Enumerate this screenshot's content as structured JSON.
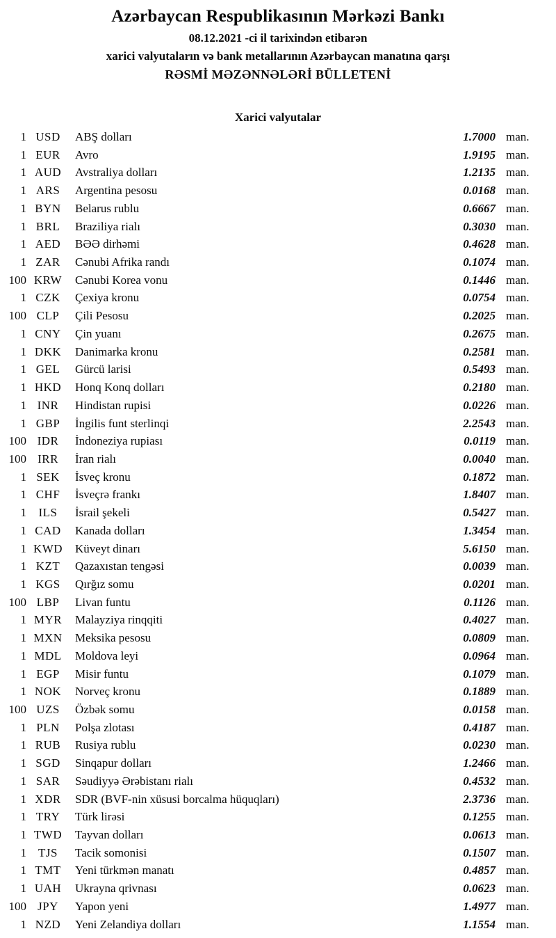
{
  "header": {
    "bank_name": "Azərbaycan Respublikasının Mərkəzi Bankı",
    "date_line": "08.12.2021 -ci il tarixindən etibarən",
    "scope_line": "xarici valyutaların və bank metallarının Azərbaycan manatına qarşı",
    "bulletin_title": "RƏSMİ MƏZƏNNƏLƏRİ BÜLLETENİ"
  },
  "section": {
    "title": "Xarici valyutalar"
  },
  "table": {
    "unit_suffix": "man.",
    "rows": [
      {
        "nominal": "1",
        "code": "USD",
        "name": "ABŞ dolları",
        "rate": "1.7000"
      },
      {
        "nominal": "1",
        "code": "EUR",
        "name": "Avro",
        "rate": "1.9195"
      },
      {
        "nominal": "1",
        "code": "AUD",
        "name": "Avstraliya dolları",
        "rate": "1.2135"
      },
      {
        "nominal": "1",
        "code": "ARS",
        "name": "Argentina pesosu",
        "rate": "0.0168"
      },
      {
        "nominal": "1",
        "code": "BYN",
        "name": "Belarus rublu",
        "rate": "0.6667"
      },
      {
        "nominal": "1",
        "code": "BRL",
        "name": "Braziliya rialı",
        "rate": "0.3030"
      },
      {
        "nominal": "1",
        "code": "AED",
        "name": "BƏƏ dirhəmi",
        "rate": "0.4628"
      },
      {
        "nominal": "1",
        "code": "ZAR",
        "name": "Cənubi Afrika randı",
        "rate": "0.1074"
      },
      {
        "nominal": "100",
        "code": "KRW",
        "name": "Cənubi Korea vonu",
        "rate": "0.1446"
      },
      {
        "nominal": "1",
        "code": "CZK",
        "name": "Çexiya kronu",
        "rate": "0.0754"
      },
      {
        "nominal": "100",
        "code": "CLP",
        "name": "Çili Pesosu",
        "rate": "0.2025"
      },
      {
        "nominal": "1",
        "code": "CNY",
        "name": "Çin yuanı",
        "rate": "0.2675"
      },
      {
        "nominal": "1",
        "code": "DKK",
        "name": "Danimarka kronu",
        "rate": "0.2581"
      },
      {
        "nominal": "1",
        "code": "GEL",
        "name": "Gürcü larisi",
        "rate": "0.5493"
      },
      {
        "nominal": "1",
        "code": "HKD",
        "name": "Honq Konq dolları",
        "rate": "0.2180"
      },
      {
        "nominal": "1",
        "code": "INR",
        "name": "Hindistan rupisi",
        "rate": "0.0226"
      },
      {
        "nominal": "1",
        "code": "GBP",
        "name": "İngilis funt sterlinqi",
        "rate": "2.2543"
      },
      {
        "nominal": "100",
        "code": "IDR",
        "name": "İndoneziya rupiası",
        "rate": "0.0119"
      },
      {
        "nominal": "100",
        "code": "IRR",
        "name": "İran rialı",
        "rate": "0.0040"
      },
      {
        "nominal": "1",
        "code": "SEK",
        "name": "İsveç kronu",
        "rate": "0.1872"
      },
      {
        "nominal": "1",
        "code": "CHF",
        "name": "İsveçrə frankı",
        "rate": "1.8407"
      },
      {
        "nominal": "1",
        "code": "ILS",
        "name": "İsrail şekeli",
        "rate": "0.5427"
      },
      {
        "nominal": "1",
        "code": "CAD",
        "name": "Kanada dolları",
        "rate": "1.3454"
      },
      {
        "nominal": "1",
        "code": "KWD",
        "name": "Küveyt dinarı",
        "rate": "5.6150"
      },
      {
        "nominal": "1",
        "code": "KZT",
        "name": "Qazaxıstan tengəsi",
        "rate": "0.0039"
      },
      {
        "nominal": "1",
        "code": "KGS",
        "name": "Qırğız somu",
        "rate": "0.0201"
      },
      {
        "nominal": "100",
        "code": "LBP",
        "name": "Livan funtu",
        "rate": "0.1126"
      },
      {
        "nominal": "1",
        "code": "MYR",
        "name": "Malayziya rinqqiti",
        "rate": "0.4027"
      },
      {
        "nominal": "1",
        "code": "MXN",
        "name": "Meksika pesosu",
        "rate": "0.0809"
      },
      {
        "nominal": "1",
        "code": "MDL",
        "name": "Moldova leyi",
        "rate": "0.0964"
      },
      {
        "nominal": "1",
        "code": "EGP",
        "name": "Misir funtu",
        "rate": "0.1079"
      },
      {
        "nominal": "1",
        "code": "NOK",
        "name": "Norveç kronu",
        "rate": "0.1889"
      },
      {
        "nominal": "100",
        "code": "UZS",
        "name": "Özbək somu",
        "rate": "0.0158"
      },
      {
        "nominal": "1",
        "code": "PLN",
        "name": "Polşa zlotası",
        "rate": "0.4187"
      },
      {
        "nominal": "1",
        "code": "RUB",
        "name": "Rusiya rublu",
        "rate": "0.0230"
      },
      {
        "nominal": "1",
        "code": "SGD",
        "name": "Sinqapur dolları",
        "rate": "1.2466"
      },
      {
        "nominal": "1",
        "code": "SAR",
        "name": "Səudiyyə Ərəbistanı rialı",
        "rate": "0.4532"
      },
      {
        "nominal": "1",
        "code": "XDR",
        "name": "SDR (BVF-nin xüsusi borcalma hüquqları)",
        "rate": "2.3736"
      },
      {
        "nominal": "1",
        "code": "TRY",
        "name": "Türk lirəsi",
        "rate": "0.1255"
      },
      {
        "nominal": "1",
        "code": "TWD",
        "name": "Tayvan dolları",
        "rate": "0.0613"
      },
      {
        "nominal": "1",
        "code": "TJS",
        "name": "Tacik somonisi",
        "rate": "0.1507"
      },
      {
        "nominal": "1",
        "code": "TMT",
        "name": "Yeni türkmən manatı",
        "rate": "0.4857"
      },
      {
        "nominal": "1",
        "code": "UAH",
        "name": "Ukrayna qrivnası",
        "rate": "0.0623"
      },
      {
        "nominal": "100",
        "code": "JPY",
        "name": "Yapon yeni",
        "rate": "1.4977"
      },
      {
        "nominal": "1",
        "code": "NZD",
        "name": "Yeni Zelandiya dolları",
        "rate": "1.1554"
      }
    ]
  }
}
